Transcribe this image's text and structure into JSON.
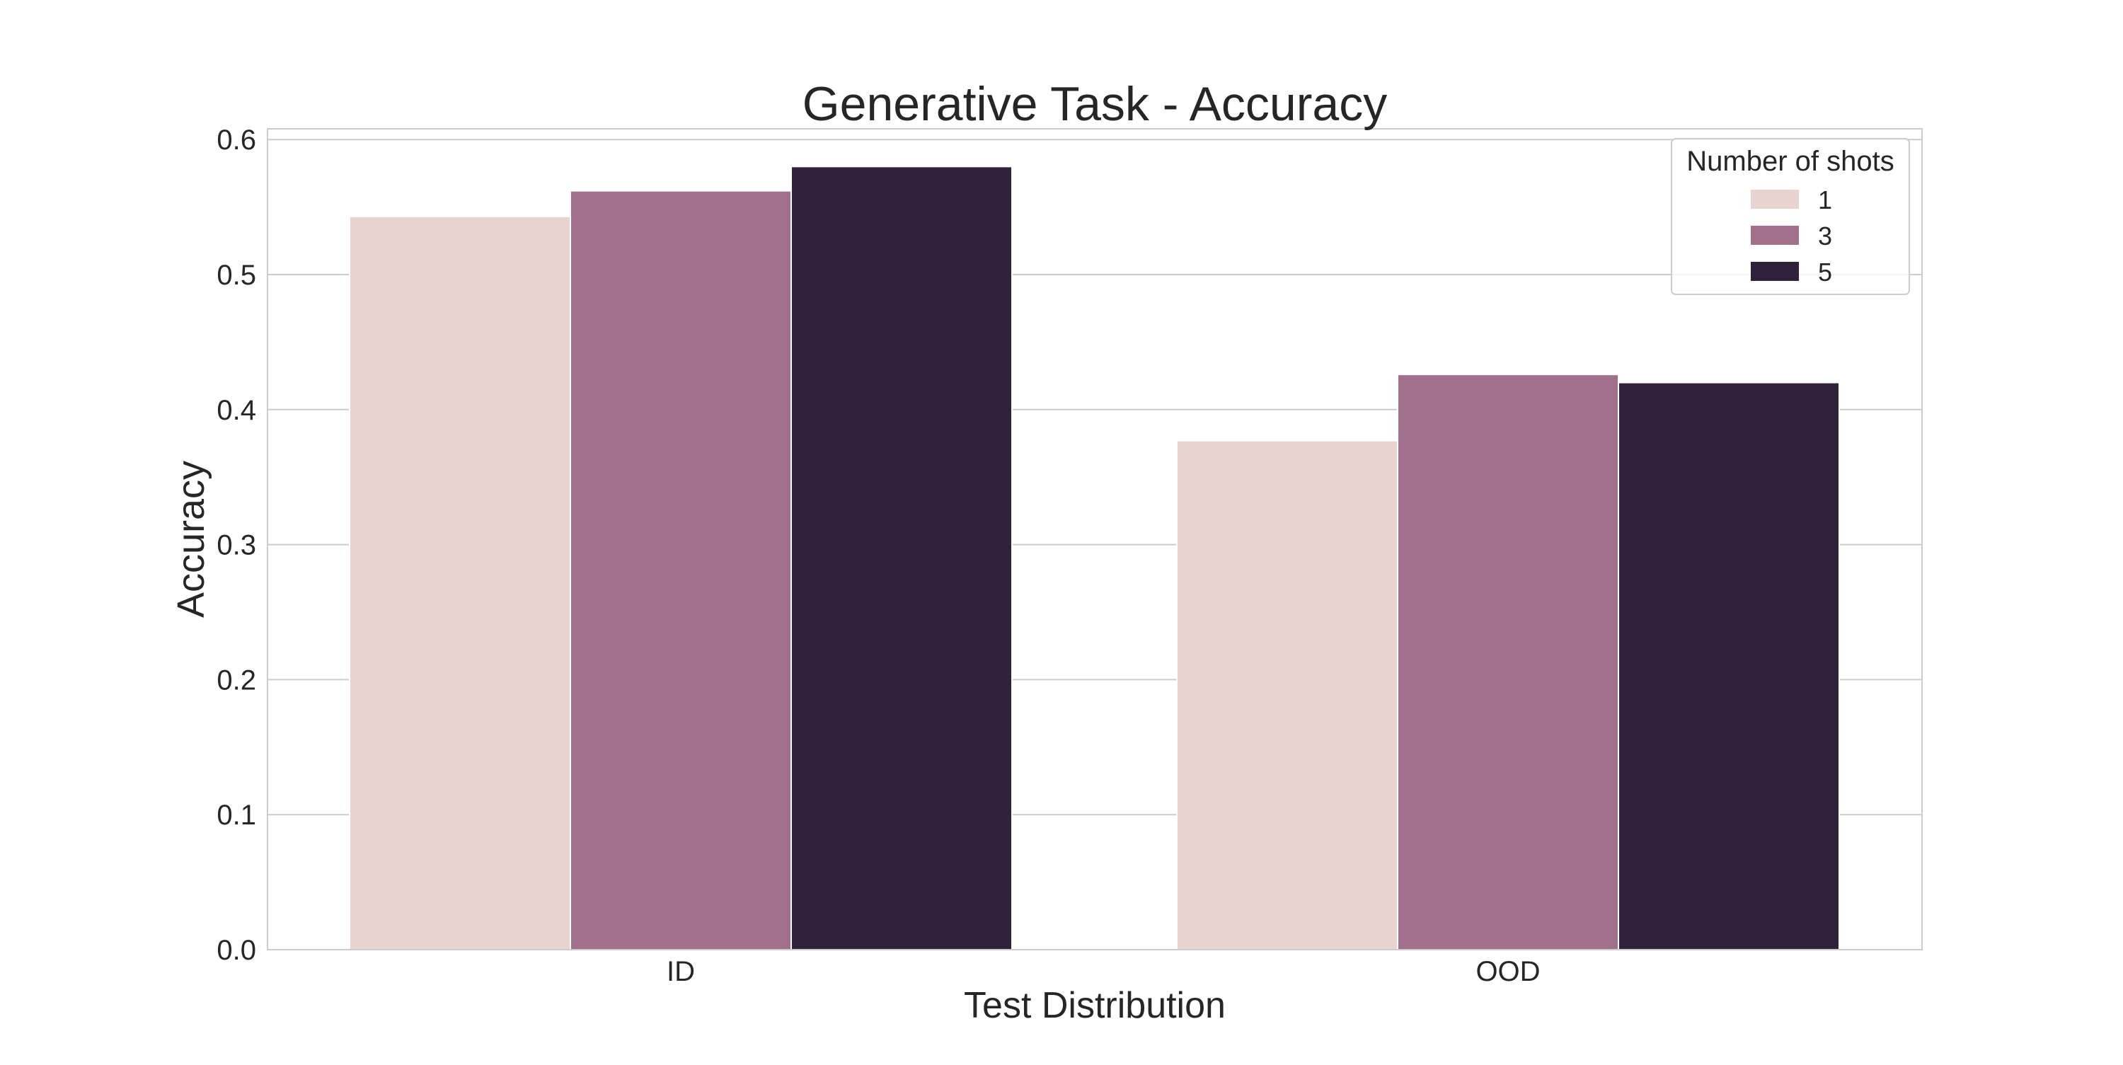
{
  "chart_data": {
    "type": "bar",
    "title": "Generative Task - Accuracy",
    "xlabel": "Test Distribution",
    "ylabel": "Accuracy",
    "categories": [
      "ID",
      "OOD"
    ],
    "ylim": [
      0,
      0.61
    ],
    "yticks": [
      "0.0",
      "0.1",
      "0.2",
      "0.3",
      "0.4",
      "0.5",
      "0.6"
    ],
    "grid": true,
    "legend": {
      "title": "Number of shots",
      "placement": "top-right"
    },
    "series": [
      {
        "name": "1",
        "color": "#e8d3cf",
        "values": [
          0.543,
          0.377
        ]
      },
      {
        "name": "3",
        "color": "#a06f8c",
        "values": [
          0.562,
          0.426
        ]
      },
      {
        "name": "5",
        "color": "#2f223a",
        "values": [
          0.58,
          0.42
        ]
      }
    ]
  }
}
